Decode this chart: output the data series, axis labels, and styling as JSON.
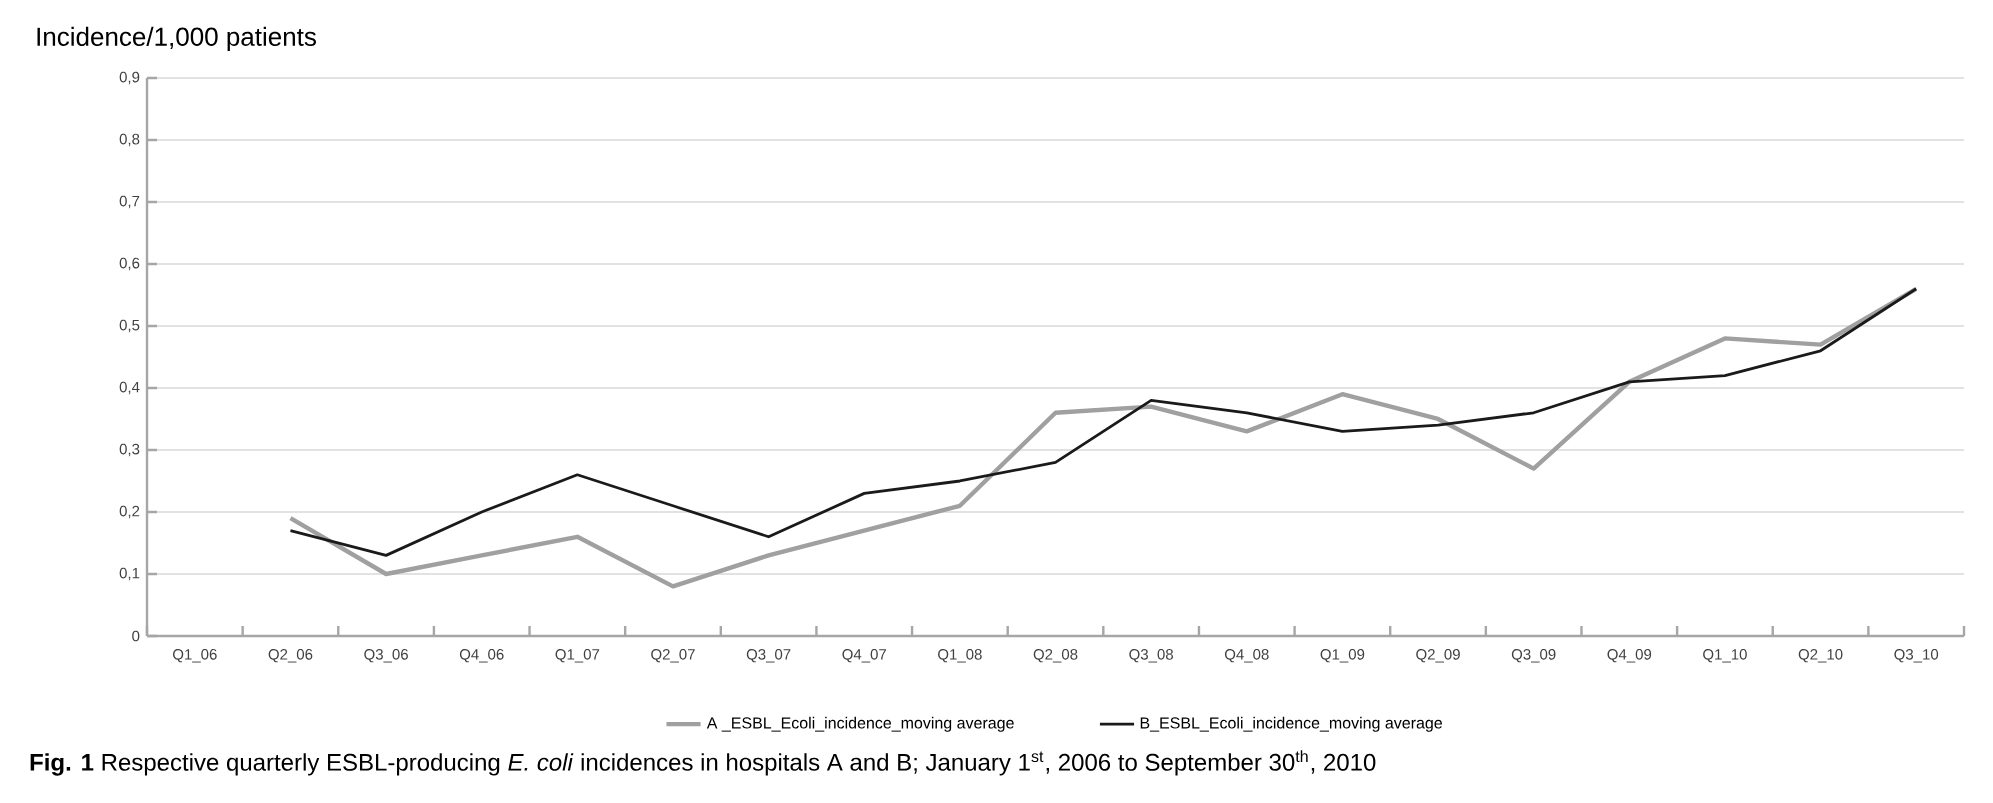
{
  "chart_data": {
    "type": "line",
    "ylabel": "Incidence/1,000 patients",
    "categories": [
      "Q1_06",
      "Q2_06",
      "Q3_06",
      "Q4_06",
      "Q1_07",
      "Q2_07",
      "Q3_07",
      "Q4_07",
      "Q1_08",
      "Q2_08",
      "Q3_08",
      "Q4_08",
      "Q1_09",
      "Q2_09",
      "Q3_09",
      "Q4_09",
      "Q1_10",
      "Q2_10",
      "Q3_10"
    ],
    "series": [
      {
        "name": "A _ESBL_Ecoli_incidence_moving average",
        "color": "#a0a0a0",
        "values": [
          null,
          0.19,
          0.1,
          0.13,
          0.16,
          0.08,
          0.13,
          0.17,
          0.21,
          0.36,
          0.37,
          0.33,
          0.39,
          0.35,
          0.27,
          0.41,
          0.48,
          0.47,
          0.56
        ]
      },
      {
        "name": "B_ESBL_Ecoli_incidence_moving average",
        "color": "#1a1a1a",
        "values": [
          null,
          0.17,
          0.13,
          0.2,
          0.26,
          0.21,
          0.16,
          0.23,
          0.25,
          0.28,
          0.38,
          0.36,
          0.33,
          0.34,
          0.36,
          0.41,
          0.42,
          0.46,
          0.56
        ]
      }
    ],
    "ylim": [
      0,
      0.9
    ],
    "yticks": [
      0,
      {
        "value": 0.1,
        "label": "0,1"
      },
      {
        "value": 0.2,
        "label": "0,2"
      },
      {
        "value": 0.3,
        "label": "0,3"
      },
      {
        "value": 0.4,
        "label": "0,4"
      },
      {
        "value": 0.5,
        "label": "0,5"
      },
      {
        "value": 0.6,
        "label": "0,6"
      },
      {
        "value": 0.7,
        "label": "0,7"
      },
      {
        "value": 0.8,
        "label": "0,8"
      },
      {
        "value": 0.9,
        "label": "0,9"
      }
    ],
    "grid": "y",
    "legend": "bottom",
    "marker": "none",
    "line_style": "solid",
    "annotations": [
      "**Fig. 1** Respective quarterly ESBL-producing *E. coli* incidences in hospitals A and B; January 1$^{st}$, 2006 to September 30$^{th}$, 2010"
    ]
  }
}
